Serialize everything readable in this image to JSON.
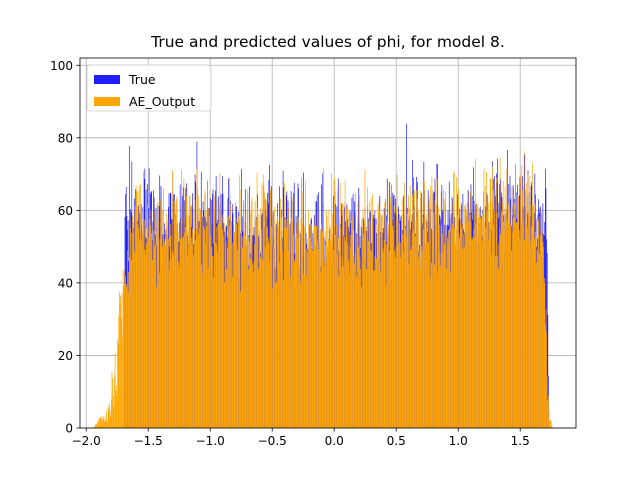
{
  "chart_data": {
    "type": "histogram",
    "title": "True and predicted values of phi, for model 8.",
    "xlabel": "",
    "ylabel": "",
    "xlim": [
      -2.05,
      1.95
    ],
    "ylim": [
      0,
      102
    ],
    "bin_start": -1.94,
    "bin_end": 1.76,
    "x_ticks": [
      -2.0,
      -1.5,
      -1.0,
      -0.5,
      0.0,
      0.5,
      1.0,
      1.5
    ],
    "x_tick_labels": [
      "−2.0",
      "−1.5",
      "−1.0",
      "−0.5",
      "0.0",
      "0.5",
      "1.0",
      "1.5"
    ],
    "y_ticks": [
      0,
      20,
      40,
      60,
      80,
      100
    ],
    "y_tick_labels": [
      "0",
      "20",
      "40",
      "60",
      "80",
      "100"
    ],
    "grid": true,
    "legend_position": "top-left",
    "series": [
      {
        "name": "True",
        "color": "#1f1ffc",
        "profile": [
          {
            "x": -1.7,
            "y": 0
          },
          {
            "x": -1.69,
            "y": 55
          },
          {
            "x": -1.6,
            "y": 62
          },
          {
            "x": -1.45,
            "y": 57
          },
          {
            "x": -0.5,
            "y": 55
          },
          {
            "x": 0.5,
            "y": 56
          },
          {
            "x": 1.3,
            "y": 60
          },
          {
            "x": 1.5,
            "y": 62
          },
          {
            "x": 1.72,
            "y": 55
          },
          {
            "x": 1.73,
            "y": 0
          }
        ]
      },
      {
        "name": "AE_Output",
        "color": "#ffa500",
        "profile": [
          {
            "x": -1.94,
            "y": 0
          },
          {
            "x": -1.9,
            "y": 2
          },
          {
            "x": -1.85,
            "y": 3
          },
          {
            "x": -1.8,
            "y": 8
          },
          {
            "x": -1.76,
            "y": 20
          },
          {
            "x": -1.73,
            "y": 33
          },
          {
            "x": -1.7,
            "y": 40
          },
          {
            "x": -1.6,
            "y": 58
          },
          {
            "x": -1.45,
            "y": 56
          },
          {
            "x": -0.5,
            "y": 54
          },
          {
            "x": 0.5,
            "y": 55
          },
          {
            "x": 1.3,
            "y": 60
          },
          {
            "x": 1.52,
            "y": 66
          },
          {
            "x": 1.65,
            "y": 58
          },
          {
            "x": 1.7,
            "y": 40
          },
          {
            "x": 1.72,
            "y": 10
          },
          {
            "x": 1.74,
            "y": 3
          },
          {
            "x": 1.76,
            "y": 0
          }
        ]
      }
    ]
  }
}
